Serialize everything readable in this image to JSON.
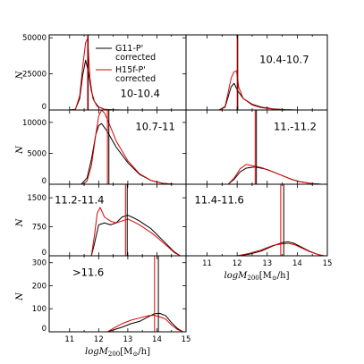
{
  "chart_data": [
    {
      "type": "line",
      "panel": "10-10.4",
      "label": "10-10.4",
      "ylabel": "N",
      "xlim": [
        10.3,
        15
      ],
      "ylim": [
        0,
        52000
      ],
      "yticks": [
        0,
        25000,
        50000
      ],
      "ytick_labels": [
        "0",
        "25000",
        "50000"
      ],
      "legend": {
        "entries": [
          "G11-P' corrected",
          "H15f-P' corrected"
        ],
        "placement": "upper-right"
      },
      "series": [
        {
          "name": "G11-P' corrected",
          "color": "#000000",
          "x": [
            10.3,
            11.0,
            11.2,
            11.35,
            11.45,
            11.55,
            11.65,
            11.75,
            11.85,
            12.0,
            12.2,
            12.5,
            12.8,
            13.0
          ],
          "y": [
            0,
            0,
            500,
            8000,
            24000,
            34500,
            26000,
            13000,
            6000,
            2000,
            500,
            100,
            0,
            0
          ]
        },
        {
          "name": "H15f-P' corrected",
          "color": "#dd0000",
          "x": [
            10.3,
            11.0,
            11.2,
            11.35,
            11.45,
            11.55,
            11.62,
            11.7,
            11.8,
            11.95,
            12.2,
            12.5,
            12.8,
            13.0
          ],
          "y": [
            0,
            0,
            300,
            10000,
            30000,
            46500,
            49500,
            22000,
            8000,
            2500,
            500,
            100,
            0,
            0
          ]
        }
      ],
      "vlines": [
        {
          "x": 11.64,
          "color": "#000000"
        },
        {
          "x": 11.62,
          "color": "#dd0000"
        }
      ]
    },
    {
      "type": "line",
      "panel": "10.4-10.7",
      "label": "10.4-10.7",
      "xlim": [
        10.3,
        15
      ],
      "ylim": [
        0,
        52000
      ],
      "series": [
        {
          "name": "G11-P' corrected",
          "color": "#000000",
          "x": [
            10.3,
            11.4,
            11.6,
            11.7,
            11.8,
            11.9,
            12.0,
            12.2,
            12.5,
            12.8,
            13.2,
            13.6,
            14.0
          ],
          "y": [
            0,
            0,
            2000,
            9000,
            16000,
            18500,
            14000,
            8000,
            4000,
            2000,
            800,
            200,
            0
          ]
        },
        {
          "name": "H15f-P' corrected",
          "color": "#dd0000",
          "x": [
            10.3,
            11.4,
            11.6,
            11.7,
            11.8,
            11.9,
            11.98,
            12.05,
            12.2,
            12.5,
            12.8,
            13.2,
            13.6,
            14.0
          ],
          "y": [
            0,
            0,
            2500,
            12000,
            22000,
            26500,
            27000,
            16000,
            8000,
            3500,
            1600,
            600,
            150,
            0
          ]
        }
      ],
      "vlines": [
        {
          "x": 12.02,
          "color": "#000000"
        },
        {
          "x": 12.0,
          "color": "#dd0000"
        }
      ]
    },
    {
      "type": "line",
      "panel": "10.7-11",
      "label": "10.7-11",
      "ylabel": "N",
      "xlim": [
        10.3,
        15
      ],
      "ylim": [
        0,
        12000
      ],
      "yticks": [
        0,
        5000,
        10000
      ],
      "ytick_labels": [
        "0",
        "5000",
        "10000"
      ],
      "series": [
        {
          "name": "G11-P' corrected",
          "color": "#000000",
          "x": [
            10.3,
            11.4,
            11.6,
            11.75,
            11.9,
            12.0,
            12.1,
            12.3,
            12.6,
            13.0,
            13.4,
            13.8,
            14.2,
            14.6
          ],
          "y": [
            0,
            0,
            1000,
            4000,
            8000,
            9500,
            9800,
            8500,
            6000,
            3500,
            1600,
            600,
            150,
            0
          ]
        },
        {
          "name": "H15f-P' corrected",
          "color": "#dd0000",
          "x": [
            10.3,
            11.45,
            11.6,
            11.75,
            11.9,
            12.0,
            12.1,
            12.2,
            12.3,
            12.6,
            13.0,
            13.4,
            13.8,
            14.2,
            14.6
          ],
          "y": [
            0,
            0,
            500,
            3000,
            8000,
            11000,
            12000,
            11500,
            10500,
            7000,
            3800,
            1700,
            600,
            150,
            0
          ]
        }
      ],
      "vlines": [
        {
          "x": 12.35,
          "color": "#000000"
        },
        {
          "x": 12.3,
          "color": "#dd0000"
        }
      ]
    },
    {
      "type": "line",
      "panel": "11.-11.2",
      "label": "11.-11.2",
      "xlim": [
        10.3,
        15
      ],
      "ylim": [
        0,
        12000
      ],
      "series": [
        {
          "name": "G11-P' corrected",
          "color": "#000000",
          "x": [
            10.3,
            11.7,
            11.9,
            12.1,
            12.3,
            12.6,
            12.9,
            13.2,
            13.5,
            13.8,
            14.1,
            14.5,
            14.8
          ],
          "y": [
            0,
            0,
            800,
            2000,
            2600,
            2800,
            2500,
            2000,
            1400,
            800,
            400,
            100,
            0
          ]
        },
        {
          "name": "H15f-P' corrected",
          "color": "#dd0000",
          "x": [
            10.3,
            11.7,
            11.9,
            12.1,
            12.3,
            12.5,
            12.8,
            13.1,
            13.4,
            13.7,
            14.0,
            14.4,
            14.8
          ],
          "y": [
            0,
            0,
            1000,
            2500,
            3200,
            3000,
            2700,
            2200,
            1600,
            1000,
            500,
            150,
            0
          ]
        }
      ],
      "vlines": [
        {
          "x": 12.64,
          "color": "#000000"
        },
        {
          "x": 12.6,
          "color": "#dd0000"
        }
      ]
    },
    {
      "type": "line",
      "panel": "11.2-11.4",
      "label": "11.2-11.4",
      "ylabel": "N",
      "xlim": [
        10.3,
        15
      ],
      "ylim": [
        0,
        1850
      ],
      "yticks": [
        0,
        750,
        1500
      ],
      "ytick_labels": [
        "0",
        "750",
        "1500"
      ],
      "series": [
        {
          "name": "G11-P' corrected",
          "color": "#000000",
          "x": [
            10.3,
            11.75,
            11.85,
            12.0,
            12.2,
            12.4,
            12.6,
            12.8,
            13.0,
            13.2,
            13.4,
            13.6,
            13.8,
            14.0,
            14.2,
            14.4,
            14.6,
            14.8
          ],
          "y": [
            0,
            0,
            300,
            800,
            850,
            800,
            850,
            1000,
            1050,
            980,
            900,
            800,
            700,
            550,
            400,
            250,
            100,
            0
          ]
        },
        {
          "name": "H15f-P' corrected",
          "color": "#dd0000",
          "x": [
            10.3,
            11.75,
            11.85,
            11.95,
            12.05,
            12.2,
            12.4,
            12.6,
            12.8,
            13.0,
            13.2,
            13.4,
            13.6,
            13.8,
            14.0,
            14.2,
            14.4,
            14.6,
            14.8
          ],
          "y": [
            0,
            0,
            500,
            1100,
            1250,
            1000,
            900,
            850,
            900,
            950,
            880,
            800,
            700,
            600,
            480,
            350,
            220,
            80,
            0
          ]
        }
      ],
      "vlines": [
        {
          "x": 12.98,
          "color": "#000000"
        },
        {
          "x": 12.92,
          "color": "#dd0000"
        }
      ]
    },
    {
      "type": "line",
      "panel": "11.4-11.6",
      "label": "11.4-11.6",
      "xlim": [
        10.3,
        15
      ],
      "ylim": [
        0,
        1850
      ],
      "xticks": [
        11,
        12,
        13,
        14,
        15
      ],
      "xtick_labels": [
        "11",
        "12",
        "13",
        "14",
        "15"
      ],
      "xlabel": "log M200 [M⊙/h]",
      "series": [
        {
          "name": "G11-P' corrected",
          "color": "#000000",
          "x": [
            10.3,
            12.0,
            12.4,
            12.8,
            13.2,
            13.5,
            13.7,
            13.9,
            14.1,
            14.4,
            14.7,
            14.9
          ],
          "y": [
            0,
            0,
            40,
            120,
            260,
            340,
            360,
            320,
            240,
            120,
            30,
            0
          ]
        },
        {
          "name": "H15f-P' corrected",
          "color": "#dd0000",
          "x": [
            10.3,
            12.0,
            12.4,
            12.8,
            13.2,
            13.5,
            13.7,
            13.9,
            14.1,
            14.4,
            14.7,
            14.9
          ],
          "y": [
            0,
            0,
            60,
            150,
            270,
            310,
            320,
            290,
            220,
            110,
            30,
            0
          ]
        }
      ],
      "vlines": [
        {
          "x": 13.55,
          "color": "#000000"
        },
        {
          "x": 13.45,
          "color": "#dd0000"
        }
      ]
    },
    {
      "type": "line",
      "panel": ">11.6",
      "label": ">11.6",
      "ylabel": "N",
      "xlim": [
        10.3,
        15
      ],
      "ylim": [
        0,
        330
      ],
      "yticks": [
        0,
        100,
        200,
        300
      ],
      "ytick_labels": [
        "0",
        "100",
        "200",
        "300"
      ],
      "xticks": [
        11,
        12,
        13,
        14,
        15
      ],
      "xtick_labels": [
        "11",
        "12",
        "13",
        "14",
        "15"
      ],
      "xlabel": "log M200 [M⊙/h]",
      "series": [
        {
          "name": "G11-P' corrected",
          "color": "#000000",
          "x": [
            10.3,
            12.3,
            12.5,
            12.8,
            13.1,
            13.4,
            13.7,
            13.9,
            14.1,
            14.3,
            14.5,
            14.7,
            14.9
          ],
          "y": [
            0,
            0,
            8,
            20,
            35,
            45,
            65,
            78,
            80,
            70,
            40,
            15,
            0
          ]
        },
        {
          "name": "H15f-P' corrected",
          "color": "#dd0000",
          "x": [
            10.3,
            12.3,
            12.5,
            12.8,
            13.1,
            13.4,
            13.7,
            13.9,
            14.1,
            14.3,
            14.5,
            14.7,
            14.9
          ],
          "y": [
            0,
            0,
            15,
            35,
            50,
            60,
            70,
            72,
            65,
            55,
            30,
            10,
            0
          ]
        }
      ],
      "vlines": [
        {
          "x": 14.05,
          "color": "#000000"
        },
        {
          "x": 13.92,
          "color": "#dd0000"
        }
      ]
    }
  ]
}
